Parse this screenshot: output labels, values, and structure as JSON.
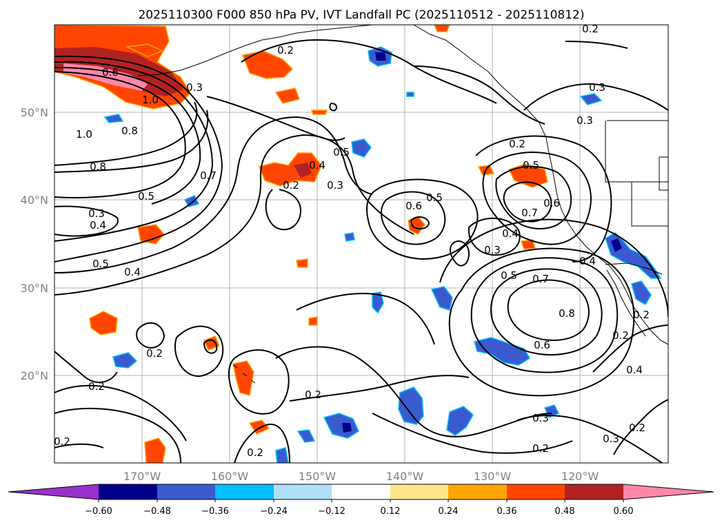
{
  "title": "2025110300 F000 850 hPa PV, IVT Landfall PC (2025110512 - 2025110812)",
  "map": {
    "lon_labels": [
      "170°W",
      "160°W",
      "150°W",
      "140°W",
      "130°W",
      "120°W"
    ],
    "lat_labels": [
      "50°N",
      "40°N",
      "30°N",
      "20°N"
    ]
  },
  "colorbar": {
    "colors": [
      "#9932cc",
      "#00008b",
      "#3a5bd0",
      "#00bfff",
      "#b0e0f8",
      "#ffffff",
      "#fde68a",
      "#ffa500",
      "#ff4500",
      "#b22222",
      "#ff88aa"
    ],
    "tick_labels": [
      "−0.60",
      "−0.48",
      "−0.36",
      "−0.24",
      "−0.12",
      "0.12",
      "0.24",
      "0.36",
      "0.48",
      "0.60"
    ]
  },
  "contour_labels": [
    "0.6",
    "1.0",
    "0.3",
    "0.8",
    "1.0",
    "0.8",
    "0.7",
    "0.5",
    "0.3",
    "0.4",
    "0.5",
    "0.4",
    "0.4",
    "0.2",
    "0.3",
    "0.5",
    "0.2",
    "0.5",
    "0.6",
    "0.5",
    "0.7",
    "0.6",
    "0.4",
    "0.3",
    "0.5",
    "0.7",
    "0.8",
    "0.6",
    "0.4",
    "0.2",
    "0.3",
    "0.3",
    "0.2",
    "0.2",
    "0.2",
    "0.2",
    "0.2",
    "0.2",
    "0.3",
    "0.2",
    "0.2",
    "0.2",
    "0.4",
    "0.3",
    "0.2"
  ]
}
